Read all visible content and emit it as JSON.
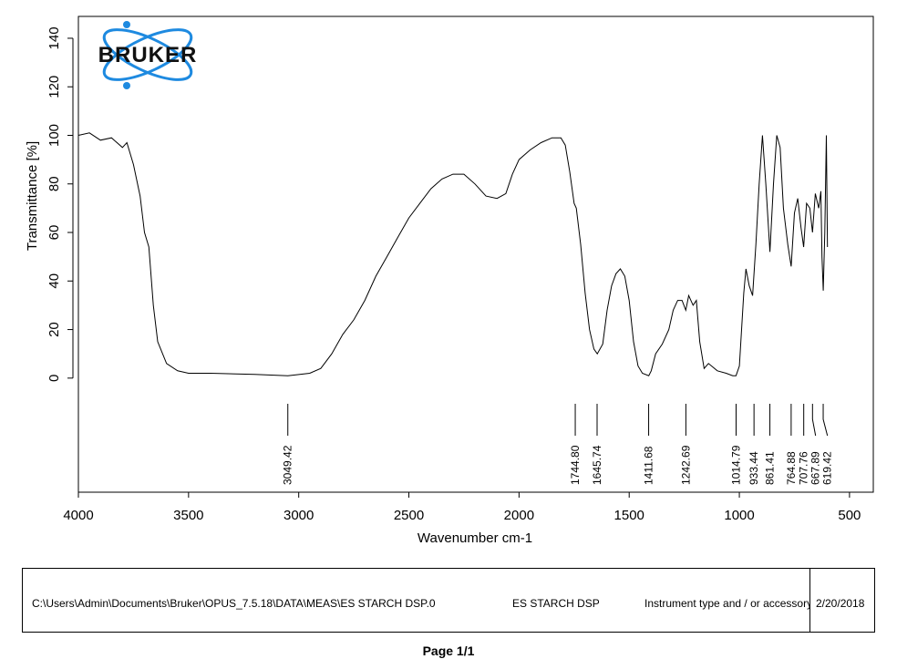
{
  "logo": "BRUKER",
  "chart_data": {
    "type": "line",
    "xlabel": "Wavenumber cm-1",
    "ylabel": "Transmittance [%]",
    "xlim": [
      4000,
      392
    ],
    "ylim": [
      -47,
      149
    ],
    "xticks": [
      4000,
      3500,
      3000,
      2500,
      2000,
      1500,
      1000,
      500
    ],
    "yticks": [
      0,
      20,
      40,
      60,
      80,
      100,
      120,
      140
    ],
    "x": [
      4000,
      3950,
      3900,
      3850,
      3800,
      3780,
      3750,
      3720,
      3700,
      3680,
      3660,
      3640,
      3600,
      3550,
      3500,
      3400,
      3200,
      3049,
      2950,
      2900,
      2850,
      2800,
      2750,
      2700,
      2650,
      2600,
      2550,
      2500,
      2450,
      2400,
      2350,
      2300,
      2250,
      2200,
      2150,
      2100,
      2060,
      2030,
      2000,
      1950,
      1900,
      1850,
      1810,
      1790,
      1770,
      1750,
      1740,
      1720,
      1700,
      1680,
      1660,
      1645,
      1620,
      1600,
      1580,
      1560,
      1540,
      1520,
      1500,
      1480,
      1460,
      1440,
      1411,
      1400,
      1380,
      1350,
      1320,
      1300,
      1280,
      1260,
      1243,
      1230,
      1210,
      1195,
      1180,
      1160,
      1140,
      1100,
      1060,
      1030,
      1015,
      1000,
      980,
      970,
      955,
      940,
      925,
      910,
      895,
      880,
      861,
      845,
      830,
      815,
      800,
      780,
      765,
      750,
      735,
      720,
      708,
      695,
      680,
      668,
      655,
      640,
      630,
      625,
      619,
      612,
      605,
      600
    ],
    "series": [
      {
        "name": "ES STARCH DSP",
        "color": "#000000",
        "values": [
          100,
          101,
          98,
          99,
          95,
          97,
          88,
          75,
          60,
          54,
          30,
          15,
          6,
          3,
          2,
          2,
          1.5,
          1,
          2,
          4,
          10,
          18,
          24,
          32,
          42,
          50,
          58,
          66,
          72,
          78,
          82,
          84,
          84,
          80,
          75,
          74,
          76,
          84,
          90,
          94,
          97,
          99,
          99,
          96,
          85,
          72,
          70,
          55,
          35,
          20,
          12,
          10,
          14,
          28,
          38,
          43,
          45,
          42,
          32,
          15,
          5,
          2,
          1,
          3,
          10,
          14,
          20,
          28,
          32,
          32,
          28,
          34,
          30,
          32,
          15,
          4,
          6,
          3,
          2,
          1,
          1,
          5,
          35,
          45,
          38,
          34,
          55,
          80,
          100,
          80,
          52,
          80,
          100,
          95,
          70,
          55,
          46,
          68,
          74,
          62,
          54,
          72,
          70,
          60,
          76,
          70,
          77,
          50,
          36,
          60,
          100,
          54
        ]
      }
    ],
    "peaks": [
      {
        "value": 3049.42,
        "label": "3049.42"
      },
      {
        "value": 1744.8,
        "label": "1744.80"
      },
      {
        "value": 1645.74,
        "label": "1645.74"
      },
      {
        "value": 1411.68,
        "label": "1411.68"
      },
      {
        "value": 1242.69,
        "label": "1242.69"
      },
      {
        "value": 1014.79,
        "label": "1014.79"
      },
      {
        "value": 933.44,
        "label": "933.44"
      },
      {
        "value": 861.41,
        "label": "861.41"
      },
      {
        "value": 764.88,
        "label": "764.88"
      },
      {
        "value": 707.76,
        "label": "707.76"
      },
      {
        "value": 667.89,
        "label": "667.89"
      },
      {
        "value": 619.42,
        "label": "619.42"
      }
    ]
  },
  "footer": {
    "path": "C:\\Users\\Admin\\Documents\\Bruker\\OPUS_7.5.18\\DATA\\MEAS\\ES STARCH DSP.0",
    "sample": "ES STARCH DSP",
    "instrument": "Instrument type and / or accessory",
    "date": "2/20/2018"
  },
  "page": "Page 1/1"
}
